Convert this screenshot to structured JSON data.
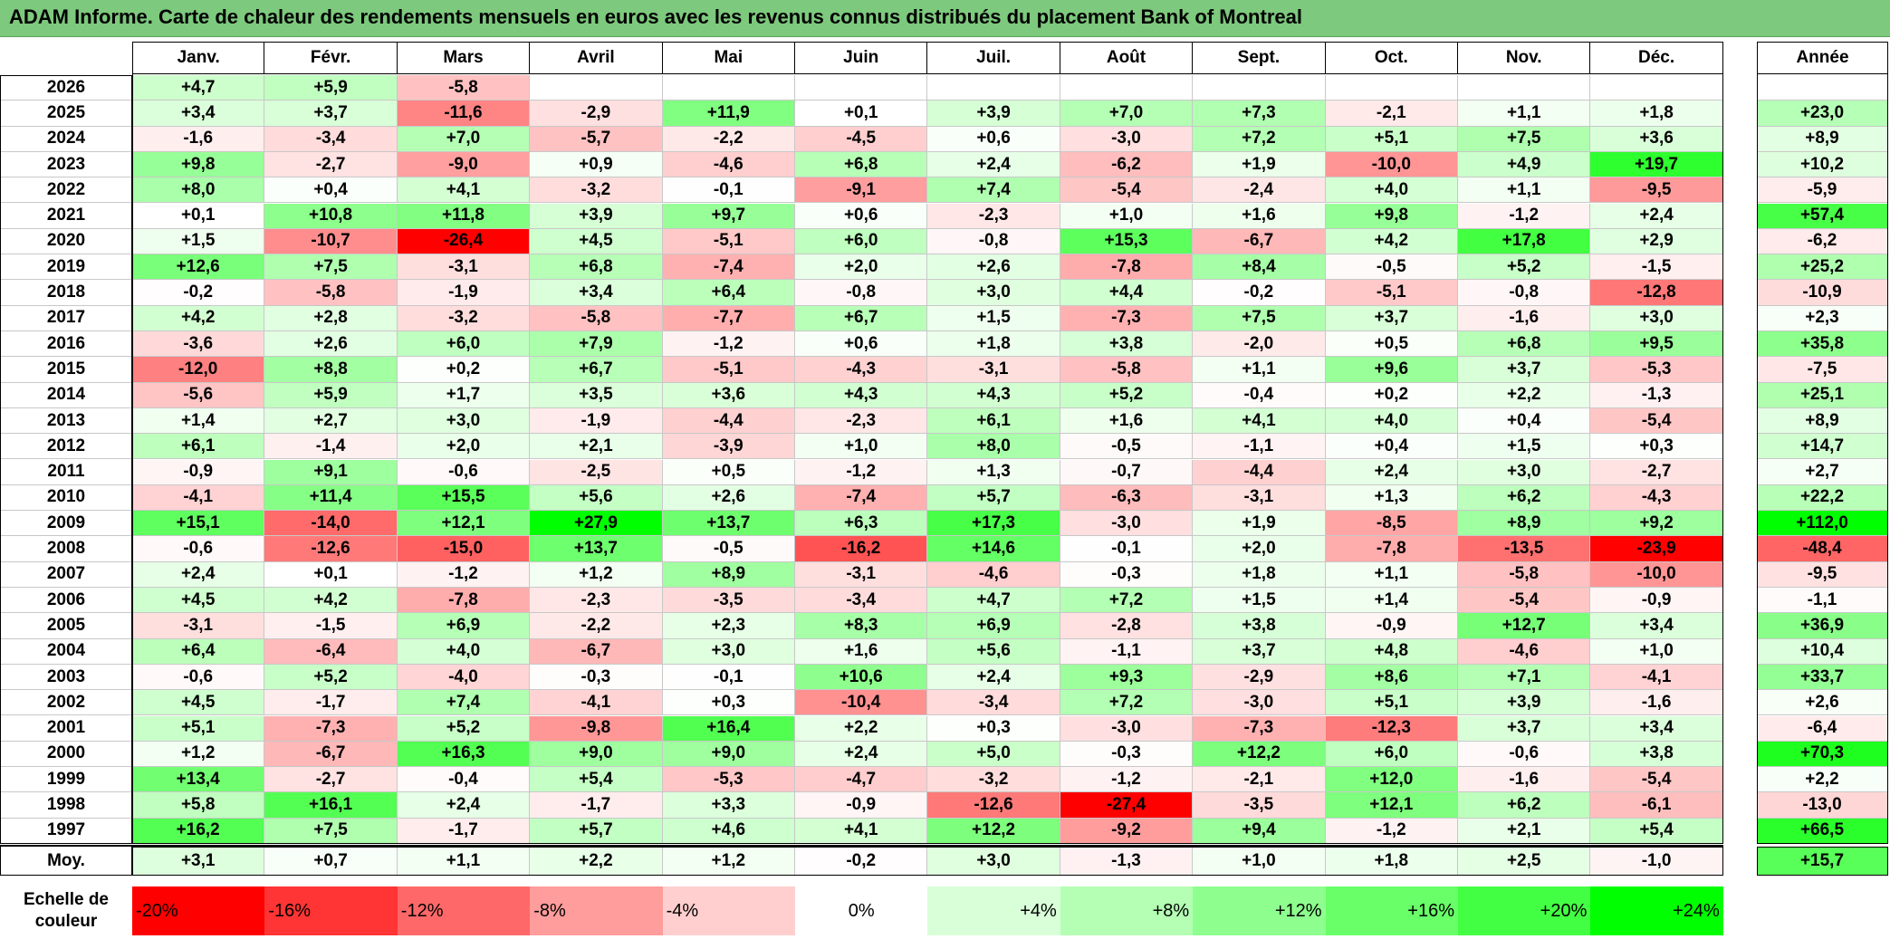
{
  "title": "ADAM Informe. Carte de chaleur des rendements mensuels en euros avec les revenus connus distribués du placement Bank of Montreal",
  "year_header": "",
  "annual_header": "Année",
  "average_label": "Moy.",
  "scale_label": "Echelle de couleur",
  "colors": {
    "title_bg": "#7dc97d",
    "max_green": "#00ff00",
    "max_red": "#ff0000",
    "neutral": "#ffffff"
  },
  "chart_data": {
    "type": "heatmap",
    "title": "ADAM Informe. Carte de chaleur des rendements mensuels en euros avec les revenus connus distribués du placement Bank of Montreal",
    "columns": [
      "Janv.",
      "Févr.",
      "Mars",
      "Avril",
      "Mai",
      "Juin",
      "Juil.",
      "Août",
      "Sept.",
      "Oct.",
      "Nov.",
      "Déc."
    ],
    "rows": [
      {
        "year": "2026",
        "values": [
          "+4,7",
          "+5,9",
          "-5,8",
          "",
          "",
          "",
          "",
          "",
          "",
          "",
          "",
          ""
        ],
        "annual": ""
      },
      {
        "year": "2025",
        "values": [
          "+3,4",
          "+3,7",
          "-11,6",
          "-2,9",
          "+11,9",
          "+0,1",
          "+3,9",
          "+7,0",
          "+7,3",
          "-2,1",
          "+1,1",
          "+1,8"
        ],
        "annual": "+23,0"
      },
      {
        "year": "2024",
        "values": [
          "-1,6",
          "-3,4",
          "+7,0",
          "-5,7",
          "-2,2",
          "-4,5",
          "+0,6",
          "-3,0",
          "+7,2",
          "+5,1",
          "+7,5",
          "+3,6"
        ],
        "annual": "+8,9"
      },
      {
        "year": "2023",
        "values": [
          "+9,8",
          "-2,7",
          "-9,0",
          "+0,9",
          "-4,6",
          "+6,8",
          "+2,4",
          "-6,2",
          "+1,9",
          "-10,0",
          "+4,9",
          "+19,7"
        ],
        "annual": "+10,2"
      },
      {
        "year": "2022",
        "values": [
          "+8,0",
          "+0,4",
          "+4,1",
          "-3,2",
          "-0,1",
          "-9,1",
          "+7,4",
          "-5,4",
          "-2,4",
          "+4,0",
          "+1,1",
          "-9,5"
        ],
        "annual": "-5,9"
      },
      {
        "year": "2021",
        "values": [
          "+0,1",
          "+10,8",
          "+11,8",
          "+3,9",
          "+9,7",
          "+0,6",
          "-2,3",
          "+1,0",
          "+1,6",
          "+9,8",
          "-1,2",
          "+2,4"
        ],
        "annual": "+57,4"
      },
      {
        "year": "2020",
        "values": [
          "+1,5",
          "-10,7",
          "-26,4",
          "+4,5",
          "-5,1",
          "+6,0",
          "-0,8",
          "+15,3",
          "-6,7",
          "+4,2",
          "+17,8",
          "+2,9"
        ],
        "annual": "-6,2"
      },
      {
        "year": "2019",
        "values": [
          "+12,6",
          "+7,5",
          "-3,1",
          "+6,8",
          "-7,4",
          "+2,0",
          "+2,6",
          "-7,8",
          "+8,4",
          "-0,5",
          "+5,2",
          "-1,5"
        ],
        "annual": "+25,2"
      },
      {
        "year": "2018",
        "values": [
          "-0,2",
          "-5,8",
          "-1,9",
          "+3,4",
          "+6,4",
          "-0,8",
          "+3,0",
          "+4,4",
          "-0,2",
          "-5,1",
          "-0,8",
          "-12,8"
        ],
        "annual": "-10,9"
      },
      {
        "year": "2017",
        "values": [
          "+4,2",
          "+2,8",
          "-3,2",
          "-5,8",
          "-7,7",
          "+6,7",
          "+1,5",
          "-7,3",
          "+7,5",
          "+3,7",
          "-1,6",
          "+3,0"
        ],
        "annual": "+2,3"
      },
      {
        "year": "2016",
        "values": [
          "-3,6",
          "+2,6",
          "+6,0",
          "+7,9",
          "-1,2",
          "+0,6",
          "+1,8",
          "+3,8",
          "-2,0",
          "+0,5",
          "+6,8",
          "+9,5"
        ],
        "annual": "+35,8"
      },
      {
        "year": "2015",
        "values": [
          "-12,0",
          "+8,8",
          "+0,2",
          "+6,7",
          "-5,1",
          "-4,3",
          "-3,1",
          "-5,8",
          "+1,1",
          "+9,6",
          "+3,7",
          "-5,3"
        ],
        "annual": "-7,5"
      },
      {
        "year": "2014",
        "values": [
          "-5,6",
          "+5,9",
          "+1,7",
          "+3,5",
          "+3,6",
          "+4,3",
          "+4,3",
          "+5,2",
          "-0,4",
          "+0,2",
          "+2,2",
          "-1,3"
        ],
        "annual": "+25,1"
      },
      {
        "year": "2013",
        "values": [
          "+1,4",
          "+2,7",
          "+3,0",
          "-1,9",
          "-4,4",
          "-2,3",
          "+6,1",
          "+1,6",
          "+4,1",
          "+4,0",
          "+0,4",
          "-5,4"
        ],
        "annual": "+8,9"
      },
      {
        "year": "2012",
        "values": [
          "+6,1",
          "-1,4",
          "+2,0",
          "+2,1",
          "-3,9",
          "+1,0",
          "+8,0",
          "-0,5",
          "-1,1",
          "+0,4",
          "+1,5",
          "+0,3"
        ],
        "annual": "+14,7"
      },
      {
        "year": "2011",
        "values": [
          "-0,9",
          "+9,1",
          "-0,6",
          "-2,5",
          "+0,5",
          "-1,2",
          "+1,3",
          "-0,7",
          "-4,4",
          "+2,4",
          "+3,0",
          "-2,7"
        ],
        "annual": "+2,7"
      },
      {
        "year": "2010",
        "values": [
          "-4,1",
          "+11,4",
          "+15,5",
          "+5,6",
          "+2,6",
          "-7,4",
          "+5,7",
          "-6,3",
          "-3,1",
          "+1,3",
          "+6,2",
          "-4,3"
        ],
        "annual": "+22,2"
      },
      {
        "year": "2009",
        "values": [
          "+15,1",
          "-14,0",
          "+12,1",
          "+27,9",
          "+13,7",
          "+6,3",
          "+17,3",
          "-3,0",
          "+1,9",
          "-8,5",
          "+8,9",
          "+9,2"
        ],
        "annual": "+112,0"
      },
      {
        "year": "2008",
        "values": [
          "-0,6",
          "-12,6",
          "-15,0",
          "+13,7",
          "-0,5",
          "-16,2",
          "+14,6",
          "-0,1",
          "+2,0",
          "-7,8",
          "-13,5",
          "-23,9"
        ],
        "annual": "-48,4"
      },
      {
        "year": "2007",
        "values": [
          "+2,4",
          "+0,1",
          "-1,2",
          "+1,2",
          "+8,9",
          "-3,1",
          "-4,6",
          "-0,3",
          "+1,8",
          "+1,1",
          "-5,8",
          "-10,0"
        ],
        "annual": "-9,5"
      },
      {
        "year": "2006",
        "values": [
          "+4,5",
          "+4,2",
          "-7,8",
          "-2,3",
          "-3,5",
          "-3,4",
          "+4,7",
          "+7,2",
          "+1,5",
          "+1,4",
          "-5,4",
          "-0,9"
        ],
        "annual": "-1,1"
      },
      {
        "year": "2005",
        "values": [
          "-3,1",
          "-1,5",
          "+6,9",
          "-2,2",
          "+2,3",
          "+8,3",
          "+6,9",
          "-2,8",
          "+3,8",
          "-0,9",
          "+12,7",
          "+3,4"
        ],
        "annual": "+36,9"
      },
      {
        "year": "2004",
        "values": [
          "+6,4",
          "-6,4",
          "+4,0",
          "-6,7",
          "+3,0",
          "+1,6",
          "+5,6",
          "-1,1",
          "+3,7",
          "+4,8",
          "-4,6",
          "+1,0"
        ],
        "annual": "+10,4"
      },
      {
        "year": "2003",
        "values": [
          "-0,6",
          "+5,2",
          "-4,0",
          "-0,3",
          "-0,1",
          "+10,6",
          "+2,4",
          "+9,3",
          "-2,9",
          "+8,6",
          "+7,1",
          "-4,1"
        ],
        "annual": "+33,7"
      },
      {
        "year": "2002",
        "values": [
          "+4,5",
          "-1,7",
          "+7,4",
          "-4,1",
          "+0,3",
          "-10,4",
          "-3,4",
          "+7,2",
          "-3,0",
          "+5,1",
          "+3,9",
          "-1,6"
        ],
        "annual": "+2,6"
      },
      {
        "year": "2001",
        "values": [
          "+5,1",
          "-7,3",
          "+5,2",
          "-9,8",
          "+16,4",
          "+2,2",
          "+0,3",
          "-3,0",
          "-7,3",
          "-12,3",
          "+3,7",
          "+3,4"
        ],
        "annual": "-6,4"
      },
      {
        "year": "2000",
        "values": [
          "+1,2",
          "-6,7",
          "+16,3",
          "+9,0",
          "+9,0",
          "+2,4",
          "+5,0",
          "-0,3",
          "+12,2",
          "+6,0",
          "-0,6",
          "+3,8"
        ],
        "annual": "+70,3"
      },
      {
        "year": "1999",
        "values": [
          "+13,4",
          "-2,7",
          "-0,4",
          "+5,4",
          "-5,3",
          "-4,7",
          "-3,2",
          "-1,2",
          "-2,1",
          "+12,0",
          "-1,6",
          "-5,4"
        ],
        "annual": "+2,2"
      },
      {
        "year": "1998",
        "values": [
          "+5,8",
          "+16,1",
          "+2,4",
          "-1,7",
          "+3,3",
          "-0,9",
          "-12,6",
          "-27,4",
          "-3,5",
          "+12,1",
          "+6,2",
          "-6,1"
        ],
        "annual": "-13,0"
      },
      {
        "year": "1997",
        "values": [
          "+16,2",
          "+7,5",
          "-1,7",
          "+5,7",
          "+4,6",
          "+4,1",
          "+12,2",
          "-9,2",
          "+9,4",
          "-1,2",
          "+2,1",
          "+5,4"
        ],
        "annual": "+66,5"
      }
    ],
    "averages": [
      "+3,1",
      "+0,7",
      "+1,1",
      "+2,2",
      "+1,2",
      "-0,2",
      "+3,0",
      "-1,3",
      "+1,0",
      "+1,8",
      "+2,5",
      "-1,0"
    ],
    "average_annual": "+15,7",
    "scale": [
      "-20%",
      "-16%",
      "-12%",
      "-8%",
      "-4%",
      "0%",
      "+4%",
      "+8%",
      "+12%",
      "+16%",
      "+20%",
      "+24%"
    ],
    "scale_values": [
      -20,
      -16,
      -12,
      -8,
      -4,
      0,
      4,
      8,
      12,
      16,
      20,
      24
    ],
    "scale_colors": [
      "#ff0000",
      "#ff3434",
      "#ff6868",
      "#ff9c9c",
      "#ffcfcf",
      "#ffffff",
      "#d9ffd9",
      "#b4ffb4",
      "#8eff8e",
      "#68ff68",
      "#43ff43",
      "#00ff00"
    ]
  }
}
